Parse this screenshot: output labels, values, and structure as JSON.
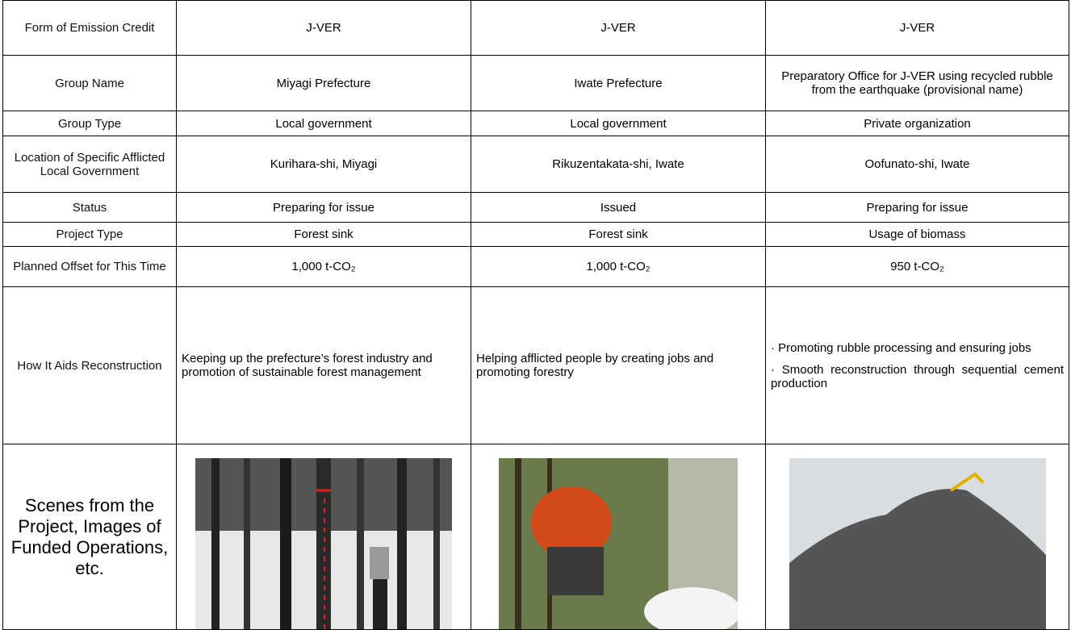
{
  "table": {
    "rows": [
      [
        "Form of Emission Credit",
        "J-VER",
        "J-VER",
        "J-VER"
      ],
      [
        "Group Name",
        "Miyagi Prefecture",
        "Iwate Prefecture",
        "Preparatory Office for J-VER using recycled rubble from the earthquake (provisional name)"
      ],
      [
        "Group Type",
        "Local government",
        "Local government",
        "Private organization"
      ],
      [
        "Location of Specific Afflicted Local Government",
        "Kurihara-shi, Miyagi",
        "Rikuzentakata-shi, Iwate",
        "Oofunato-shi, Iwate"
      ],
      [
        "Status",
        "Preparing for issue",
        "Issued",
        "Preparing for issue"
      ],
      [
        "Project Type",
        "Forest sink",
        "Forest sink",
        "Usage of biomass"
      ],
      [
        "Planned Offset for This Time",
        "1,000 t-CO₂",
        "1,000 t-CO₂",
        "950 t-CO₂"
      ],
      [
        "How It Aids Reconstruction",
        "Keeping up the prefecture’s forest industry and promotion of sustainable forest management",
        "Helping afflicted people by creating jobs and promoting forestry",
        [
          "· Promoting rubble processing and ensuring jobs",
          "· Smooth reconstruction through sequential cement production"
        ]
      ],
      [
        "Scenes from the Project, Images of Funded Operations, etc."
      ]
    ]
  }
}
